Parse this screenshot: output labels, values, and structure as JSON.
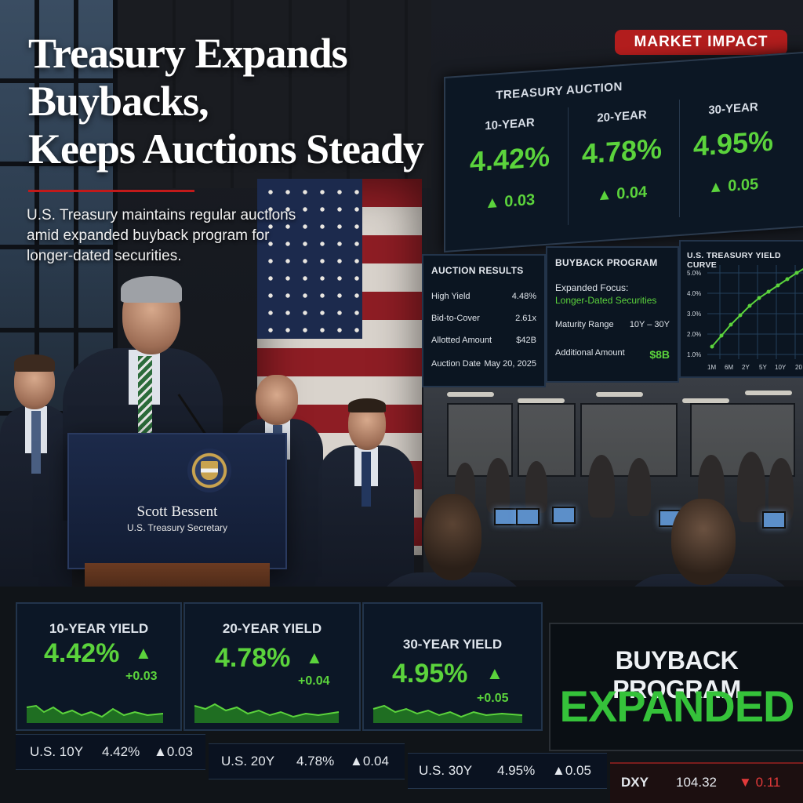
{
  "headline": {
    "line1": "Treasury Expands",
    "line2": "Buybacks,",
    "line3": "Keeps Auctions Steady"
  },
  "subhead": {
    "line1": "U.S. Treasury maintains regular auctions",
    "line2": "amid expanded buyback program for",
    "line3": "longer-dated securities."
  },
  "badge": "MARKET IMPACT",
  "podium": {
    "name": "Scott Bessent",
    "title": "U.S. Treasury Secretary"
  },
  "auction_board": {
    "title": "TREASURY AUCTION",
    "columns": [
      {
        "label": "10-YEAR",
        "value": "4.42%",
        "change": "0.03"
      },
      {
        "label": "20-YEAR",
        "value": "4.78%",
        "change": "0.04"
      },
      {
        "label": "30-YEAR",
        "value": "4.95%",
        "change": "0.05"
      }
    ]
  },
  "auction_results": {
    "title": "AUCTION RESULTS",
    "rows": [
      {
        "key": "High Yield",
        "value": "4.48%"
      },
      {
        "key": "Bid-to-Cover",
        "value": "2.61x"
      },
      {
        "key": "Allotted Amount",
        "value": "$42B"
      },
      {
        "key": "Auction Date",
        "value": "May 20, 2025"
      }
    ]
  },
  "buyback_program": {
    "title": "BUYBACK PROGRAM",
    "focus_label": "Expanded Focus:",
    "focus_value": "Longer-Dated Securities",
    "rows": [
      {
        "key": "Maturity Range",
        "value": "10Y – 30Y"
      },
      {
        "key": "Additional Amount",
        "value": "$8B"
      }
    ]
  },
  "yield_curve": {
    "title": "U.S. TREASURY YIELD CURVE",
    "y_ticks": [
      "5.0%",
      "4.0%",
      "3.0%",
      "2.0%",
      "1.0%"
    ],
    "x_ticks": [
      "1M",
      "6M",
      "2Y",
      "5Y",
      "10Y",
      "20"
    ]
  },
  "yield_boxes": [
    {
      "label": "10-YEAR YIELD",
      "value": "4.42%",
      "change": "+0.03"
    },
    {
      "label": "20-YEAR YIELD",
      "value": "4.78%",
      "change": "+0.04"
    },
    {
      "label": "30-YEAR YIELD",
      "value": "4.95%",
      "change": "+0.05"
    }
  ],
  "banner": {
    "line1": "BUYBACK PROGRAM",
    "line2": "EXPANDED"
  },
  "ticker": [
    {
      "symbol": "U.S.  10Y",
      "value": "4.42%",
      "change": "0.03"
    },
    {
      "symbol": "U.S.  20Y",
      "value": "4.78%",
      "change": "0.04"
    },
    {
      "symbol": "U.S.  30Y",
      "value": "4.95%",
      "change": "0.05"
    }
  ],
  "dxy": {
    "symbol": "DXY",
    "value": "104.32",
    "change": "0.11"
  },
  "colors": {
    "up": "#5bd33c",
    "down": "#e23a3a",
    "badge": "#b21d1d"
  },
  "icons": [
    "up-arrow-icon",
    "down-arrow-icon",
    "treasury-seal-icon"
  ]
}
